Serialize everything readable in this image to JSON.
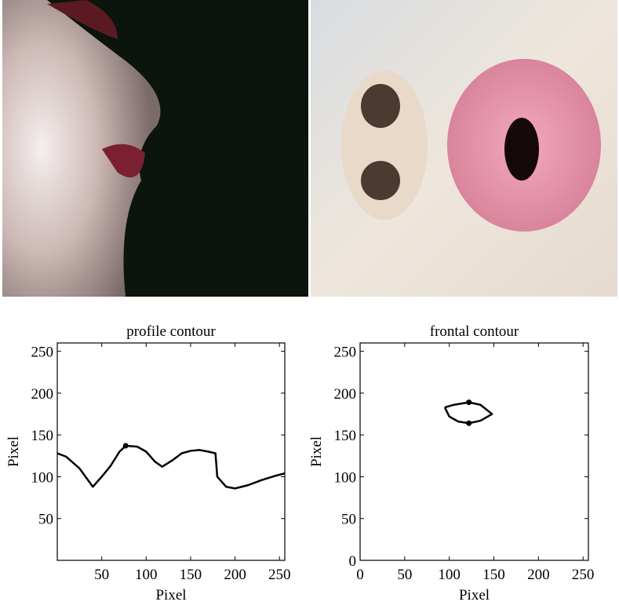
{
  "chart_data": [
    {
      "type": "line",
      "title": "profile contour",
      "xlabel": "Pixel",
      "ylabel": "Pixel",
      "x": [
        0,
        10,
        25,
        40,
        50,
        60,
        70,
        77,
        90,
        100,
        110,
        118,
        130,
        140,
        150,
        160,
        170,
        178,
        180,
        190,
        200,
        215,
        230,
        245,
        256
      ],
      "values": [
        128,
        124,
        110,
        88,
        100,
        113,
        130,
        137,
        136,
        130,
        118,
        112,
        120,
        128,
        131,
        132,
        130,
        128,
        100,
        88,
        86,
        90,
        96,
        101,
        104
      ],
      "marker_x": [
        77
      ],
      "marker_y": [
        137
      ],
      "color": "#000000",
      "xlim": [
        0,
        256
      ],
      "ylim": [
        0,
        260
      ],
      "xticks": [
        50,
        100,
        150,
        200,
        250
      ],
      "yticks": [
        50,
        100,
        150,
        200,
        250
      ]
    },
    {
      "type": "line",
      "title": "frontal contour",
      "xlabel": "Pixel",
      "ylabel": "Pixel",
      "x": [
        95,
        105,
        122,
        135,
        148,
        135,
        122,
        110,
        100,
        95
      ],
      "values": [
        183,
        186,
        189,
        186,
        175,
        167,
        164,
        166,
        172,
        183
      ],
      "marker_x": [
        122,
        122
      ],
      "marker_y": [
        189,
        164
      ],
      "color": "#000000",
      "xlim": [
        0,
        256
      ],
      "ylim": [
        0,
        260
      ],
      "xticks": [
        0,
        50,
        100,
        150,
        200,
        250
      ],
      "yticks": [
        0,
        50,
        100,
        150,
        200,
        250
      ]
    }
  ]
}
